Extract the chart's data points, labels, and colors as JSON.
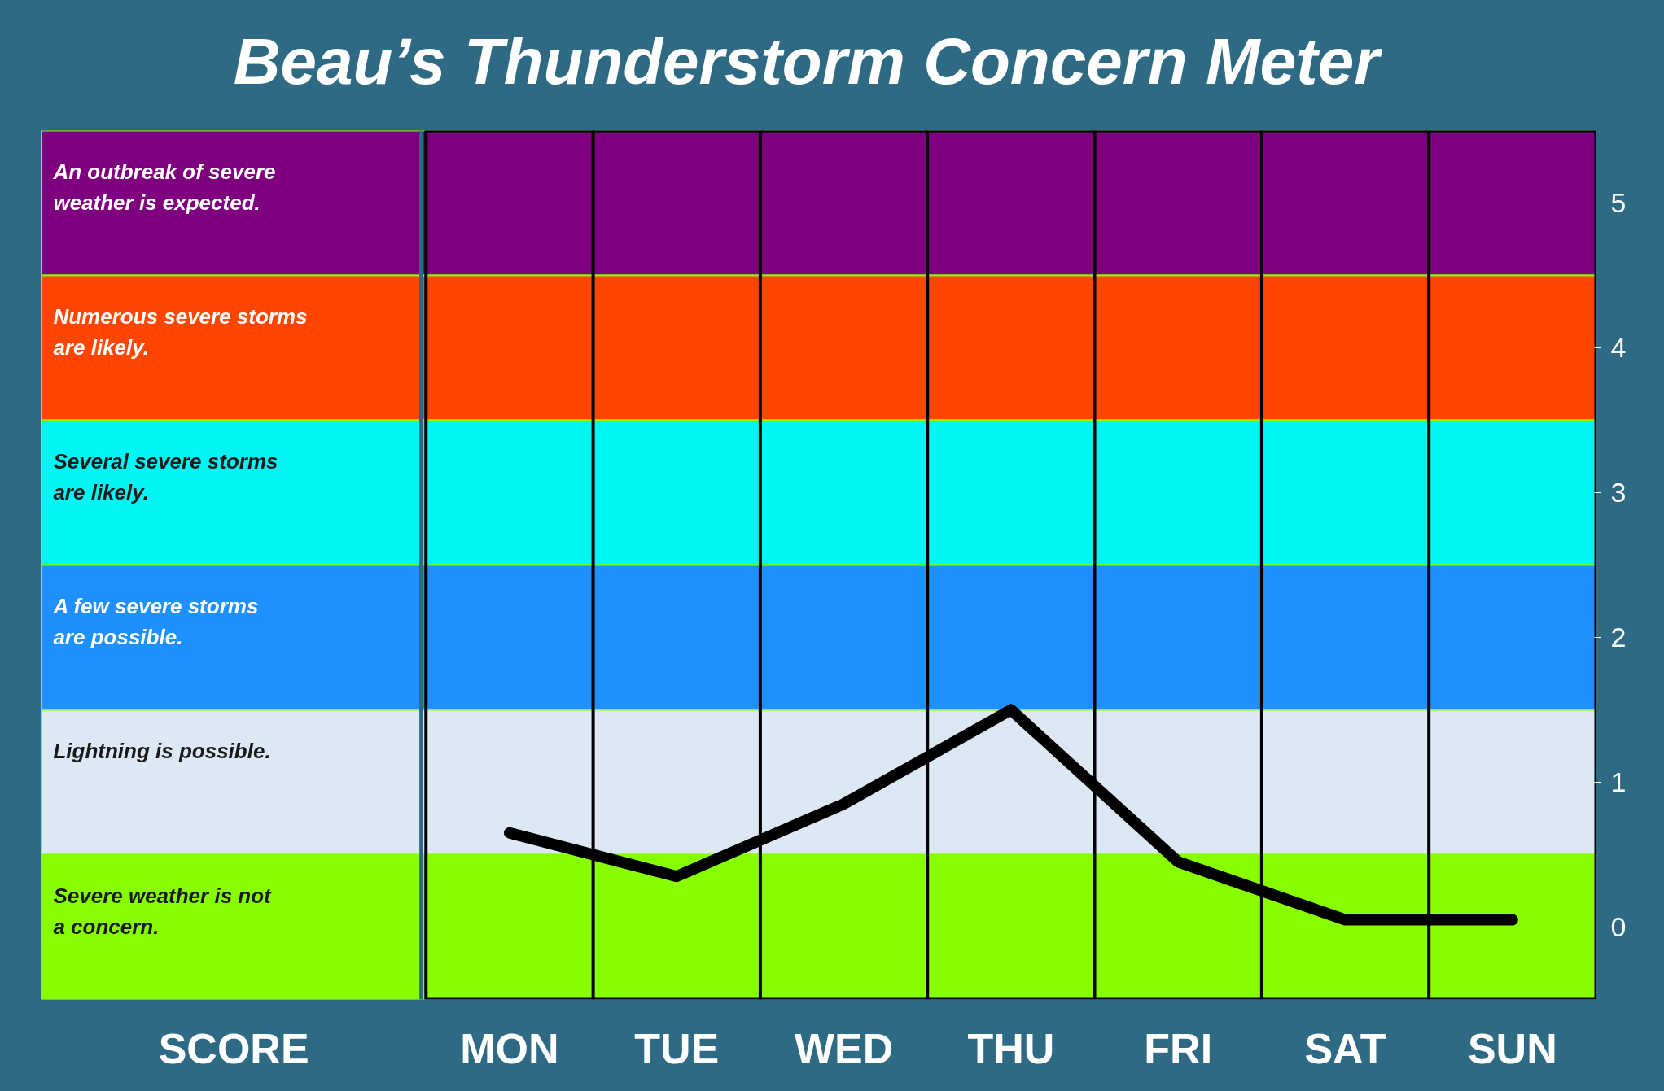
{
  "chart_data": {
    "type": "line",
    "title": "Beau’s Thunderstorm Concern Meter",
    "ylabel": "SCORE",
    "categories": [
      "MON",
      "TUE",
      "WED",
      "THU",
      "FRI",
      "SAT",
      "SUN"
    ],
    "ylim": [
      -0.5,
      5.5
    ],
    "yticks": [
      0,
      1,
      2,
      3,
      4,
      5
    ],
    "series": [
      {
        "color": "#000000",
        "values": [
          0.65,
          0.35,
          0.85,
          1.5,
          0.45,
          0.05,
          0.05
        ]
      }
    ],
    "bands": [
      {
        "axis": "y",
        "from": 4.5,
        "to": 5.5,
        "label": "An outbreak of severe weather is expected.",
        "color": "#7f007f"
      },
      {
        "axis": "y",
        "from": 3.5,
        "to": 4.5,
        "label": "Numerous severe storms are likely.",
        "color": "#ff4500"
      },
      {
        "axis": "y",
        "from": 2.5,
        "to": 3.5,
        "label": "Several severe storms are likely.",
        "color": "#00f5f5"
      },
      {
        "axis": "y",
        "from": 1.5,
        "to": 2.5,
        "label": "A few severe storms are possible.",
        "color": "#1e90ff"
      },
      {
        "axis": "y",
        "from": 0.5,
        "to": 1.5,
        "label": "Lightning is possible.",
        "color": "#dce9f5"
      },
      {
        "axis": "y",
        "from": -0.5,
        "to": 0.5,
        "label": "Severe weather is not a concern.",
        "color": "#88ff00"
      }
    ],
    "grid": false,
    "marker": "none",
    "line_style": "solid"
  }
}
